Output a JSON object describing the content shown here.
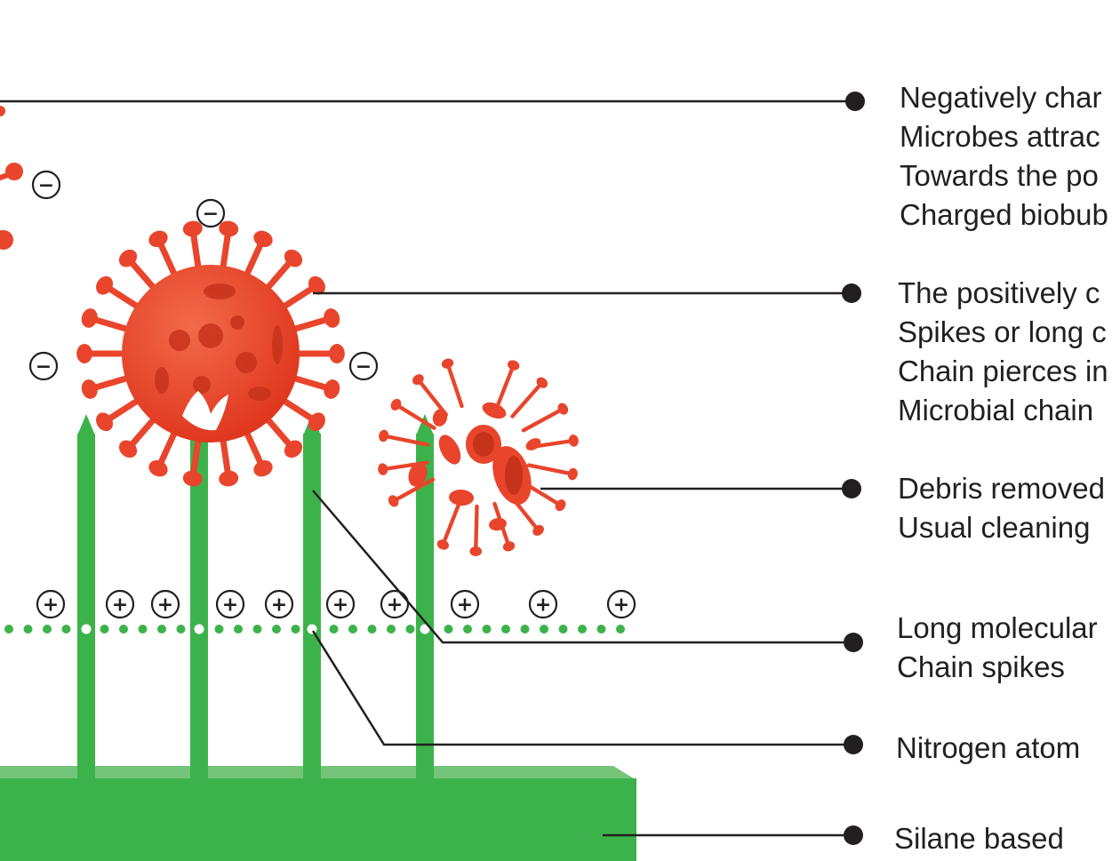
{
  "labels": {
    "negative_charge": [
      "Negatively char",
      "Microbes attrac",
      "Towards the po",
      "Charged biobub"
    ],
    "pierce": [
      "The positively c",
      "Spikes or long c",
      "Chain pierces in",
      "Microbial chain"
    ],
    "debris": [
      "Debris removed",
      "Usual cleaning"
    ],
    "chain": [
      "Long molecular",
      "Chain spikes"
    ],
    "nitrogen": [
      "Nitrogen atom"
    ],
    "silane": [
      "Silane based"
    ]
  },
  "symbols": {
    "negative": "−",
    "positive": "+"
  },
  "colors": {
    "virus": "#e8452c",
    "virus_dark": "#c7321b",
    "spike_green": "#3cb34a",
    "base_green": "#3cb34a",
    "base_top": "#74c47a",
    "dot_green": "#3cb34a",
    "line": "#231f20"
  }
}
